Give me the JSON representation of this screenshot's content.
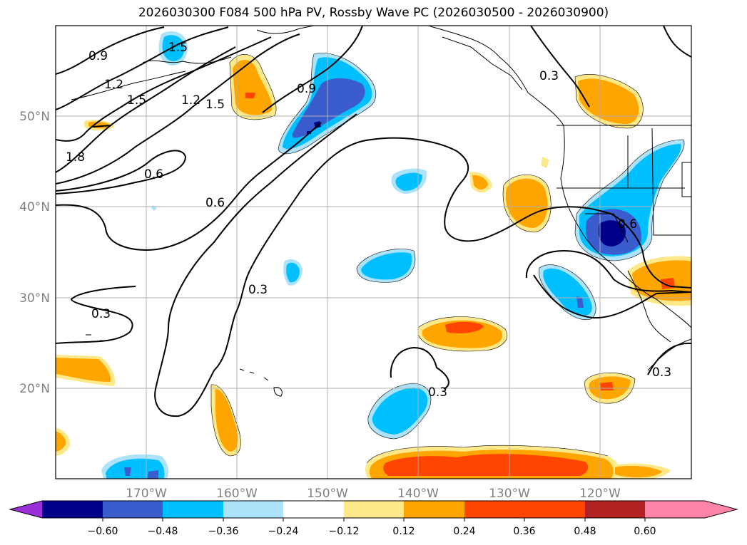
{
  "title": "2026030300 F084 500 hPa PV, Rossby Wave PC (2026030500 - 2026030900)",
  "map": {
    "lon_ticks": [
      "170°W",
      "160°W",
      "150°W",
      "140°W",
      "130°W",
      "120°W"
    ],
    "lat_ticks": [
      "50°N",
      "40°N",
      "30°N",
      "20°N"
    ],
    "gridlines": true
  },
  "contours": {
    "pv_labels": [
      "0.3",
      "0.3",
      "0.3",
      "0.3",
      "0.3",
      "0.6",
      "0.6",
      "0.6",
      "0.9",
      "0.9",
      "1.2",
      "1.2",
      "1.5",
      "1.5",
      "1.8",
      "1.5"
    ]
  },
  "colorbar": {
    "ticks": [
      "−0.60",
      "−0.48",
      "−0.36",
      "−0.24",
      "−0.12",
      "0.12",
      "0.24",
      "0.36",
      "0.48",
      "0.60"
    ],
    "colors": [
      "#9b30d9",
      "#00008b",
      "#3a5ccd",
      "#00bfff",
      "#ade3fa",
      "#ffffff",
      "#fde88a",
      "#ffa500",
      "#ff4500",
      "#b22222",
      "#ff85a8"
    ]
  }
}
